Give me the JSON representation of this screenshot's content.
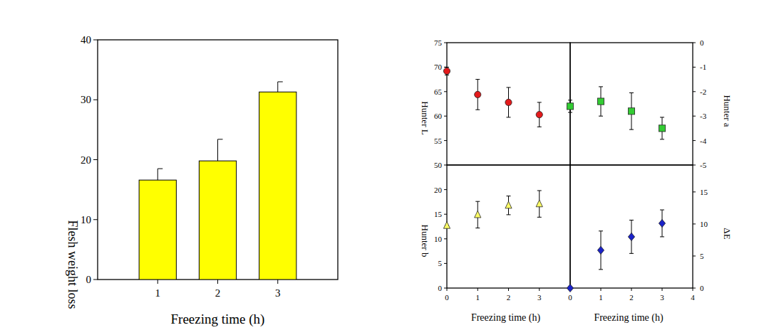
{
  "chart_data": [
    {
      "type": "bar",
      "x": [
        1,
        2,
        3
      ],
      "values": [
        16.6,
        19.8,
        31.3
      ],
      "errors": [
        1.9,
        3.6,
        1.7
      ],
      "color": "#ffff00",
      "xlim": [
        0,
        4
      ],
      "xticks": [
        1,
        2,
        3
      ],
      "ylim": [
        0,
        40
      ],
      "yticks": [
        0,
        10,
        20,
        30,
        40
      ],
      "xlabel": "Freezing time (h)",
      "ylabel": "Flesh weight loss"
    },
    {
      "type": "scatter",
      "x": [
        0,
        1,
        2,
        3
      ],
      "xlim": [
        0,
        4
      ],
      "ylim": [
        50,
        75
      ],
      "yticks": [
        50,
        55,
        60,
        65,
        70,
        75
      ],
      "ylabel": "Hunter L",
      "series": [
        {
          "color": "#e41a1c",
          "marker": "circle",
          "values": [
            69.2,
            64.4,
            62.8,
            60.3
          ],
          "errors": [
            0.8,
            3.1,
            3.05,
            2.5
          ]
        }
      ]
    },
    {
      "type": "scatter",
      "x": [
        0,
        1,
        2,
        3
      ],
      "xlim": [
        0,
        4
      ],
      "y2lim": [
        -5,
        0
      ],
      "y2ticks": [
        -5,
        -4,
        -3,
        -2,
        -1,
        0
      ],
      "y2label": "Hunter a",
      "series": [
        {
          "axis": "y2",
          "color": "#33cc33",
          "marker": "square",
          "values": [
            -2.6,
            -2.4,
            -2.8,
            -3.5
          ],
          "errors": [
            0.25,
            0.6,
            0.75,
            0.45
          ]
        }
      ]
    },
    {
      "type": "scatter",
      "x": [
        0,
        1,
        2,
        3
      ],
      "xlim": [
        0,
        4
      ],
      "xticks": [
        0,
        1,
        2,
        3
      ],
      "ylim": [
        0,
        25
      ],
      "yticks": [
        0,
        5,
        10,
        15,
        20
      ],
      "xlabel": "Freezing time (h)",
      "ylabel": "Hunter b",
      "series": [
        {
          "color": "#ffff66",
          "marker": "triangle",
          "values": [
            12.7,
            14.9,
            16.8,
            17.1
          ],
          "errors": [
            0,
            2.7,
            1.9,
            2.7
          ]
        }
      ]
    },
    {
      "type": "scatter",
      "x": [
        0,
        1,
        2,
        3
      ],
      "xlim": [
        0,
        4
      ],
      "xticks": [
        0,
        1,
        2,
        3,
        4
      ],
      "y2lim": [
        0,
        19.2
      ],
      "y2ticks": [
        0,
        5,
        10,
        15
      ],
      "xlabel": "Freezing time (h)",
      "y2label": "ΔE",
      "series": [
        {
          "axis": "y2",
          "color": "#1a22c8",
          "marker": "diamond",
          "values": [
            0,
            5.9,
            8.0,
            10.1
          ],
          "errors": [
            0,
            3.0,
            2.6,
            2.1
          ]
        }
      ]
    }
  ]
}
